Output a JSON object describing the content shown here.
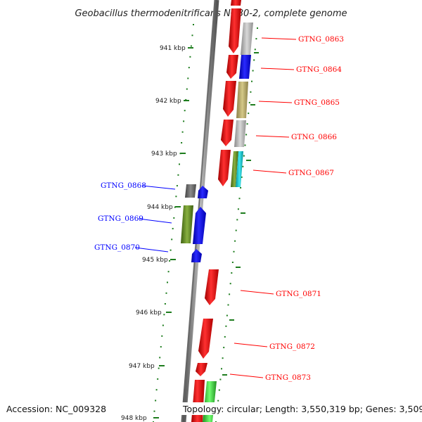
{
  "title": "Geobacillus thermodenitrificans NG80-2, complete genome",
  "footer": {
    "accession": "Accession: NC_009328",
    "summary": "Topology: circular; Length: 3,550,319 bp; Genes: 3,509"
  },
  "colors": {
    "forward": "#ff0000",
    "reverse": "#0000ff",
    "tick": "#1e7d1e",
    "backbone": "#777777"
  },
  "scale_labels": [
    "941 kbp",
    "942 kbp",
    "943 kbp",
    "944 kbp",
    "945 kbp",
    "946 kbp",
    "947 kbp",
    "948 kbp"
  ],
  "genes": [
    {
      "label": "GTNG_0863",
      "strand": "forward"
    },
    {
      "label": "GTNG_0864",
      "strand": "forward"
    },
    {
      "label": "GTNG_0865",
      "strand": "forward"
    },
    {
      "label": "GTNG_0866",
      "strand": "forward"
    },
    {
      "label": "GTNG_0867",
      "strand": "forward"
    },
    {
      "label": "GTNG_0868",
      "strand": "reverse"
    },
    {
      "label": "GTNG_0869",
      "strand": "reverse"
    },
    {
      "label": "GTNG_0870",
      "strand": "reverse"
    },
    {
      "label": "GTNG_0871",
      "strand": "forward"
    },
    {
      "label": "GTNG_0872",
      "strand": "forward"
    },
    {
      "label": "GTNG_0873",
      "strand": "forward"
    }
  ],
  "cog_colors": [
    "#b4b4b4",
    "#0000ff",
    "#b4a864",
    "#b4b4b4",
    "#5a8a1e",
    "#00c8d2",
    "#646464",
    "#648c1e",
    "#3cc83c"
  ]
}
